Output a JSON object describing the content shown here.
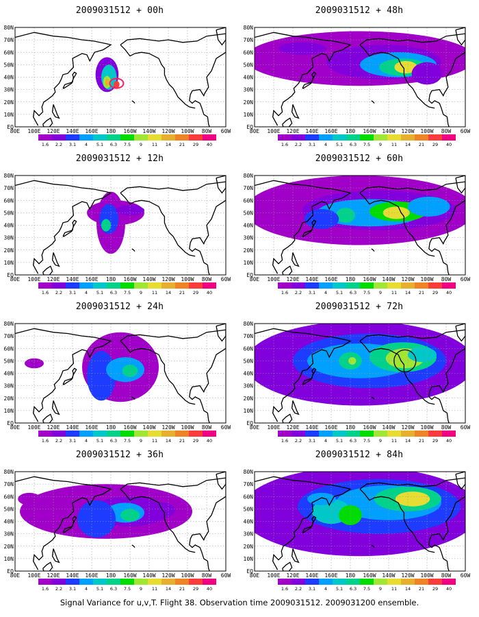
{
  "palette": [
    "#a000c8",
    "#8200dc",
    "#1e3cff",
    "#00a0ff",
    "#00c8c8",
    "#00d28c",
    "#00dc00",
    "#a0e632",
    "#e6dc32",
    "#e6af2d",
    "#f08228",
    "#fa3c3c",
    "#f00082"
  ],
  "legend_labels": [
    "1.6",
    "2.2",
    "3.1",
    "4",
    "5.1",
    "6.3",
    "7.5",
    "9",
    "11",
    "14",
    "21",
    "29",
    "40"
  ],
  "lon_labels": [
    "80E",
    "100E",
    "120E",
    "140E",
    "160E",
    "180",
    "160W",
    "140W",
    "120W",
    "100W",
    "80W",
    "60W"
  ],
  "lat_labels": [
    "EQ",
    "10N",
    "20N",
    "30N",
    "40N",
    "50N",
    "60N",
    "70N",
    "80N"
  ],
  "caption": "Signal Variance for u,v,T. Flight 38. Observation time 2009031512. 2009031200 ensemble.",
  "panels": [
    {
      "id": "p00",
      "title": "2009031512 + 00h"
    },
    {
      "id": "p48",
      "title": "2009031512 + 48h"
    },
    {
      "id": "p12",
      "title": "2009031512 + 12h"
    },
    {
      "id": "p60",
      "title": "2009031512 + 60h"
    },
    {
      "id": "p24",
      "title": "2009031512 + 24h"
    },
    {
      "id": "p72",
      "title": "2009031512 + 72h"
    },
    {
      "id": "p36",
      "title": "2009031512 + 36h"
    },
    {
      "id": "p84",
      "title": "2009031512 + 84h"
    }
  ]
}
